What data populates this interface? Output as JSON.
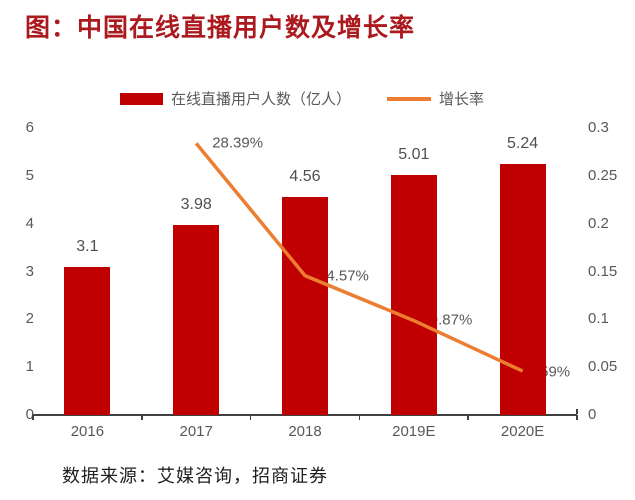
{
  "title": "图：中国在线直播用户数及增长率",
  "legend": {
    "bar_label": "在线直播用户人数（亿人）",
    "line_label": "增长率"
  },
  "source": "数据来源：艾媒咨询，招商证券",
  "colors": {
    "bar": "#c00000",
    "line": "#ed7d31",
    "title": "#ab1a1f",
    "axis_text": "#595959",
    "value_text": "#4f4f4f",
    "source_text": "#1f1f1f",
    "axis_line": "#404040"
  },
  "chart_data": {
    "type": "bar",
    "subtype": "bar+line combo",
    "categories": [
      "2016",
      "2017",
      "2018",
      "2019E",
      "2020E"
    ],
    "series": [
      {
        "name": "在线直播用户人数（亿人）",
        "type": "bar",
        "axis": "left",
        "values": [
          3.1,
          3.98,
          4.56,
          5.01,
          5.24
        ],
        "labels": [
          "3.1",
          "3.98",
          "4.56",
          "5.01",
          "5.24"
        ]
      },
      {
        "name": "增长率",
        "type": "line",
        "axis": "right",
        "values": [
          null,
          0.2839,
          0.1457,
          0.0987,
          0.0459
        ],
        "labels": [
          null,
          "28.39%",
          "14.57%",
          "9.87%",
          "4.59%"
        ]
      }
    ],
    "left_axis": {
      "min": 0,
      "max": 6,
      "ticks": [
        "0",
        "1",
        "2",
        "3",
        "4",
        "5",
        "6"
      ]
    },
    "right_axis": {
      "min": 0,
      "max": 0.3,
      "ticks": [
        "0",
        "0.05",
        "0.1",
        "0.15",
        "0.2",
        "0.25",
        "0.3"
      ]
    },
    "grid": false,
    "legend_position": "top"
  }
}
